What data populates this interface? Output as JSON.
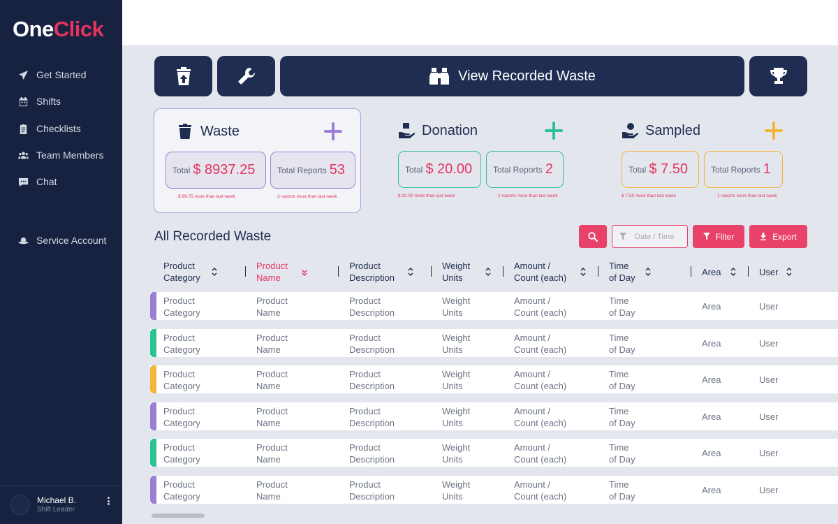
{
  "app": {
    "logo_one": "One",
    "logo_click": "Click"
  },
  "sidebar": {
    "items": [
      {
        "label": "Get Started",
        "icon": "send-icon"
      },
      {
        "label": "Shifts",
        "icon": "calendar-icon"
      },
      {
        "label": "Checklists",
        "icon": "clipboard-icon"
      },
      {
        "label": "Team Members",
        "icon": "team-icon"
      },
      {
        "label": "Chat",
        "icon": "chat-icon"
      },
      {
        "label": "Service Account",
        "icon": "service-hat-icon"
      }
    ]
  },
  "user": {
    "name": "Michael B.",
    "role": "Shift Leader"
  },
  "toolbar": {
    "view_label": "View Recorded Waste"
  },
  "cards": [
    {
      "title": "Waste",
      "total_label": "Total",
      "total_value": "$ 8937.25",
      "reports_label": "Total Reports",
      "reports_value": "53",
      "total_note": "$ 99.75 more than last week",
      "reports_note": "3 reports more than last week",
      "color": "#9b7fd4"
    },
    {
      "title": "Donation",
      "total_label": "Total",
      "total_value": "$ 20.00",
      "reports_label": "Total Reports",
      "reports_value": "2",
      "total_note": "$ 20.00 more than last week",
      "reports_note": "2 reports more than last week",
      "color": "#2dc296"
    },
    {
      "title": "Sampled",
      "total_label": "Total",
      "total_value": "$ 7.50",
      "reports_label": "Total Reports",
      "reports_value": "1",
      "total_note": "$ 7.50 more than last week",
      "reports_note": "1 reports more than last week",
      "color": "#f3b43c"
    }
  ],
  "section": {
    "title": "All Recorded Waste"
  },
  "filters": {
    "date_placeholder": "Date / Time",
    "filter_label": "Filter",
    "export_label": "Export"
  },
  "table": {
    "headers": [
      {
        "line1": "Product",
        "line2": "Category"
      },
      {
        "line1": "Product",
        "line2": "Name"
      },
      {
        "line1": "Product",
        "line2": "Description"
      },
      {
        "line1": "Weight",
        "line2": "Units"
      },
      {
        "line1": "Amount /",
        "line2": "Count (each)"
      },
      {
        "line1": "Time",
        "line2": "of Day"
      },
      {
        "line1": "Area",
        "line2": ""
      },
      {
        "line1": "User",
        "line2": ""
      }
    ],
    "rows": [
      {
        "type_color": "#9b7fd4",
        "cells": [
          [
            "Product",
            "Category"
          ],
          [
            "Product",
            "Name"
          ],
          [
            "Product",
            "Description"
          ],
          [
            "Weight",
            "Units"
          ],
          [
            "Amount /",
            "Count (each)"
          ],
          [
            "Time",
            "of Day"
          ],
          [
            "Area",
            ""
          ],
          [
            "User",
            ""
          ]
        ]
      },
      {
        "type_color": "#2dc296",
        "cells": [
          [
            "Product",
            "Category"
          ],
          [
            "Product",
            "Name"
          ],
          [
            "Product",
            "Description"
          ],
          [
            "Weight",
            "Units"
          ],
          [
            "Amount /",
            "Count (each)"
          ],
          [
            "Time",
            "of Day"
          ],
          [
            "Area",
            ""
          ],
          [
            "User",
            ""
          ]
        ]
      },
      {
        "type_color": "#f3b43c",
        "cells": [
          [
            "Product",
            "Category"
          ],
          [
            "Product",
            "Name"
          ],
          [
            "Product",
            "Description"
          ],
          [
            "Weight",
            "Units"
          ],
          [
            "Amount /",
            "Count (each)"
          ],
          [
            "Time",
            "of Day"
          ],
          [
            "Area",
            ""
          ],
          [
            "User",
            ""
          ]
        ]
      },
      {
        "type_color": "#9b7fd4",
        "cells": [
          [
            "Product",
            "Category"
          ],
          [
            "Product",
            "Name"
          ],
          [
            "Product",
            "Description"
          ],
          [
            "Weight",
            "Units"
          ],
          [
            "Amount /",
            "Count (each)"
          ],
          [
            "Time",
            "of Day"
          ],
          [
            "Area",
            ""
          ],
          [
            "User",
            ""
          ]
        ]
      },
      {
        "type_color": "#2dc296",
        "cells": [
          [
            "Product",
            "Category"
          ],
          [
            "Product",
            "Name"
          ],
          [
            "Product",
            "Description"
          ],
          [
            "Weight",
            "Units"
          ],
          [
            "Amount /",
            "Count (each)"
          ],
          [
            "Time",
            "of Day"
          ],
          [
            "Area",
            ""
          ],
          [
            "User",
            ""
          ]
        ]
      },
      {
        "type_color": "#9b7fd4",
        "cells": [
          [
            "Product",
            "Category"
          ],
          [
            "Product",
            "Name"
          ],
          [
            "Product",
            "Description"
          ],
          [
            "Weight",
            "Units"
          ],
          [
            "Amount /",
            "Count (each)"
          ],
          [
            "Time",
            "of Day"
          ],
          [
            "Area",
            ""
          ],
          [
            "User",
            ""
          ]
        ]
      }
    ]
  },
  "colors": {
    "brand": "#e4335e",
    "navy": "#1e2d51",
    "sidebar": "#16223f"
  }
}
